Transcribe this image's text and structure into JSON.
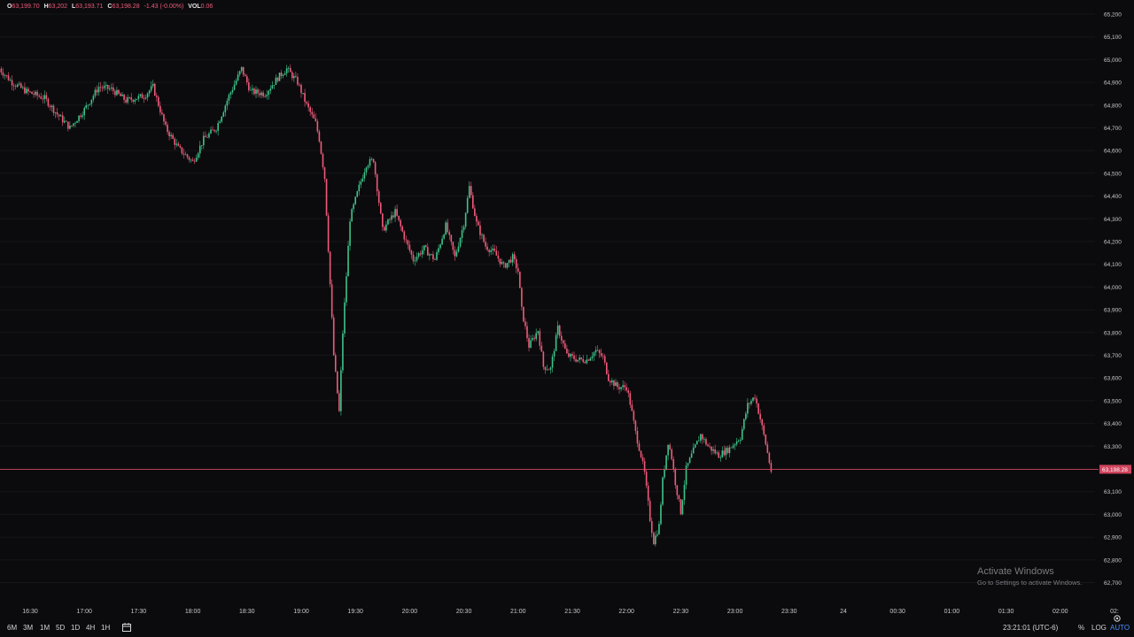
{
  "legend": {
    "open_label": "O",
    "open_value": "63,199.70",
    "high_label": "H",
    "high_value": "63,202",
    "low_label": "L",
    "low_value": "63,193.71",
    "close_label": "C",
    "close_value": "63,198.28",
    "change": "-1.43 (-0.00%)",
    "vol_label": "VOL",
    "vol_value": "0.06"
  },
  "price_axis": {
    "ticks": [
      "65,200",
      "65,100",
      "65,000",
      "64,900",
      "64,800",
      "64,700",
      "64,600",
      "64,500",
      "64,400",
      "64,300",
      "64,200",
      "64,100",
      "64,000",
      "63,900",
      "63,800",
      "63,700",
      "63,600",
      "63,500",
      "63,400",
      "63,300",
      "63,100",
      "63,000",
      "62,900",
      "62,800",
      "62,700"
    ],
    "current_price_label": "63,198.28",
    "current_price": 63198.28
  },
  "time_axis": {
    "ticks": [
      "16:30",
      "17:00",
      "17:30",
      "18:00",
      "18:30",
      "19:00",
      "19:30",
      "20:00",
      "20:30",
      "21:00",
      "21:30",
      "22:00",
      "22:30",
      "23:00",
      "23:30",
      "24",
      "00:30",
      "01:00",
      "01:30",
      "02:00",
      "02:"
    ]
  },
  "timeframes": [
    "6M",
    "3M",
    "1M",
    "5D",
    "1D",
    "4H",
    "1H"
  ],
  "clock": "23:21:01 (UTC-6)",
  "options": {
    "percent": "%",
    "log": "LOG",
    "auto": "AUTO"
  },
  "watermark": {
    "title": "Activate Windows",
    "subtitle": "Go to Settings to activate Windows."
  },
  "colors": {
    "background": "#0b0b0d",
    "up": "#3ec48a",
    "down": "#ef5a7a",
    "price_line": "#d0455e",
    "grid": "#16161a"
  },
  "chart_data": {
    "type": "candlestick",
    "y_unit": "price",
    "x_unit": "time",
    "path": [
      [
        "16:13",
        64960
      ],
      [
        "16:20",
        64900
      ],
      [
        "16:28",
        64860
      ],
      [
        "16:38",
        64830
      ],
      [
        "16:45",
        64760
      ],
      [
        "16:52",
        64700
      ],
      [
        "17:00",
        64780
      ],
      [
        "17:08",
        64880
      ],
      [
        "17:15",
        64870
      ],
      [
        "17:23",
        64820
      ],
      [
        "17:33",
        64840
      ],
      [
        "17:38",
        64880
      ],
      [
        "17:45",
        64700
      ],
      [
        "17:52",
        64610
      ],
      [
        "18:00",
        64550
      ],
      [
        "18:06",
        64650
      ],
      [
        "18:13",
        64700
      ],
      [
        "18:20",
        64840
      ],
      [
        "18:27",
        64960
      ],
      [
        "18:32",
        64860
      ],
      [
        "18:40",
        64850
      ],
      [
        "18:47",
        64920
      ],
      [
        "18:52",
        64960
      ],
      [
        "18:58",
        64900
      ],
      [
        "19:03",
        64800
      ],
      [
        "19:08",
        64720
      ],
      [
        "19:10",
        64650
      ],
      [
        "19:13",
        64480
      ],
      [
        "19:18",
        63700
      ],
      [
        "19:21",
        63450
      ],
      [
        "19:23",
        63800
      ],
      [
        "19:27",
        64300
      ],
      [
        "19:32",
        64440
      ],
      [
        "19:36",
        64540
      ],
      [
        "19:40",
        64560
      ],
      [
        "19:45",
        64250
      ],
      [
        "19:52",
        64330
      ],
      [
        "19:57",
        64220
      ],
      [
        "20:02",
        64120
      ],
      [
        "20:08",
        64170
      ],
      [
        "20:14",
        64120
      ],
      [
        "20:20",
        64270
      ],
      [
        "20:25",
        64130
      ],
      [
        "20:30",
        64280
      ],
      [
        "20:33",
        64440
      ],
      [
        "20:37",
        64280
      ],
      [
        "20:42",
        64180
      ],
      [
        "20:47",
        64150
      ],
      [
        "20:52",
        64090
      ],
      [
        "20:57",
        64130
      ],
      [
        "21:00",
        64070
      ],
      [
        "21:02",
        63900
      ],
      [
        "21:06",
        63740
      ],
      [
        "21:11",
        63810
      ],
      [
        "21:14",
        63650
      ],
      [
        "21:18",
        63640
      ],
      [
        "21:22",
        63820
      ],
      [
        "21:27",
        63700
      ],
      [
        "21:33",
        63680
      ],
      [
        "21:38",
        63680
      ],
      [
        "21:43",
        63720
      ],
      [
        "21:47",
        63690
      ],
      [
        "21:50",
        63600
      ],
      [
        "21:55",
        63560
      ],
      [
        "22:00",
        63560
      ],
      [
        "22:02",
        63490
      ],
      [
        "22:05",
        63360
      ],
      [
        "22:08",
        63260
      ],
      [
        "22:10",
        63180
      ],
      [
        "22:13",
        62980
      ],
      [
        "22:15",
        62880
      ],
      [
        "22:18",
        62950
      ],
      [
        "22:20",
        63150
      ],
      [
        "22:23",
        63320
      ],
      [
        "22:25",
        63250
      ],
      [
        "22:27",
        63140
      ],
      [
        "22:30",
        63010
      ],
      [
        "22:33",
        63200
      ],
      [
        "22:37",
        63280
      ],
      [
        "22:41",
        63350
      ],
      [
        "22:45",
        63300
      ],
      [
        "22:51",
        63260
      ],
      [
        "22:57",
        63290
      ],
      [
        "23:03",
        63340
      ],
      [
        "23:07",
        63480
      ],
      [
        "23:11",
        63520
      ],
      [
        "23:14",
        63420
      ],
      [
        "23:17",
        63310
      ],
      [
        "23:20",
        63190
      ]
    ],
    "ylim": [
      62680,
      65240
    ],
    "x_range": [
      "16:00",
      "02:"
    ],
    "grid": true
  }
}
